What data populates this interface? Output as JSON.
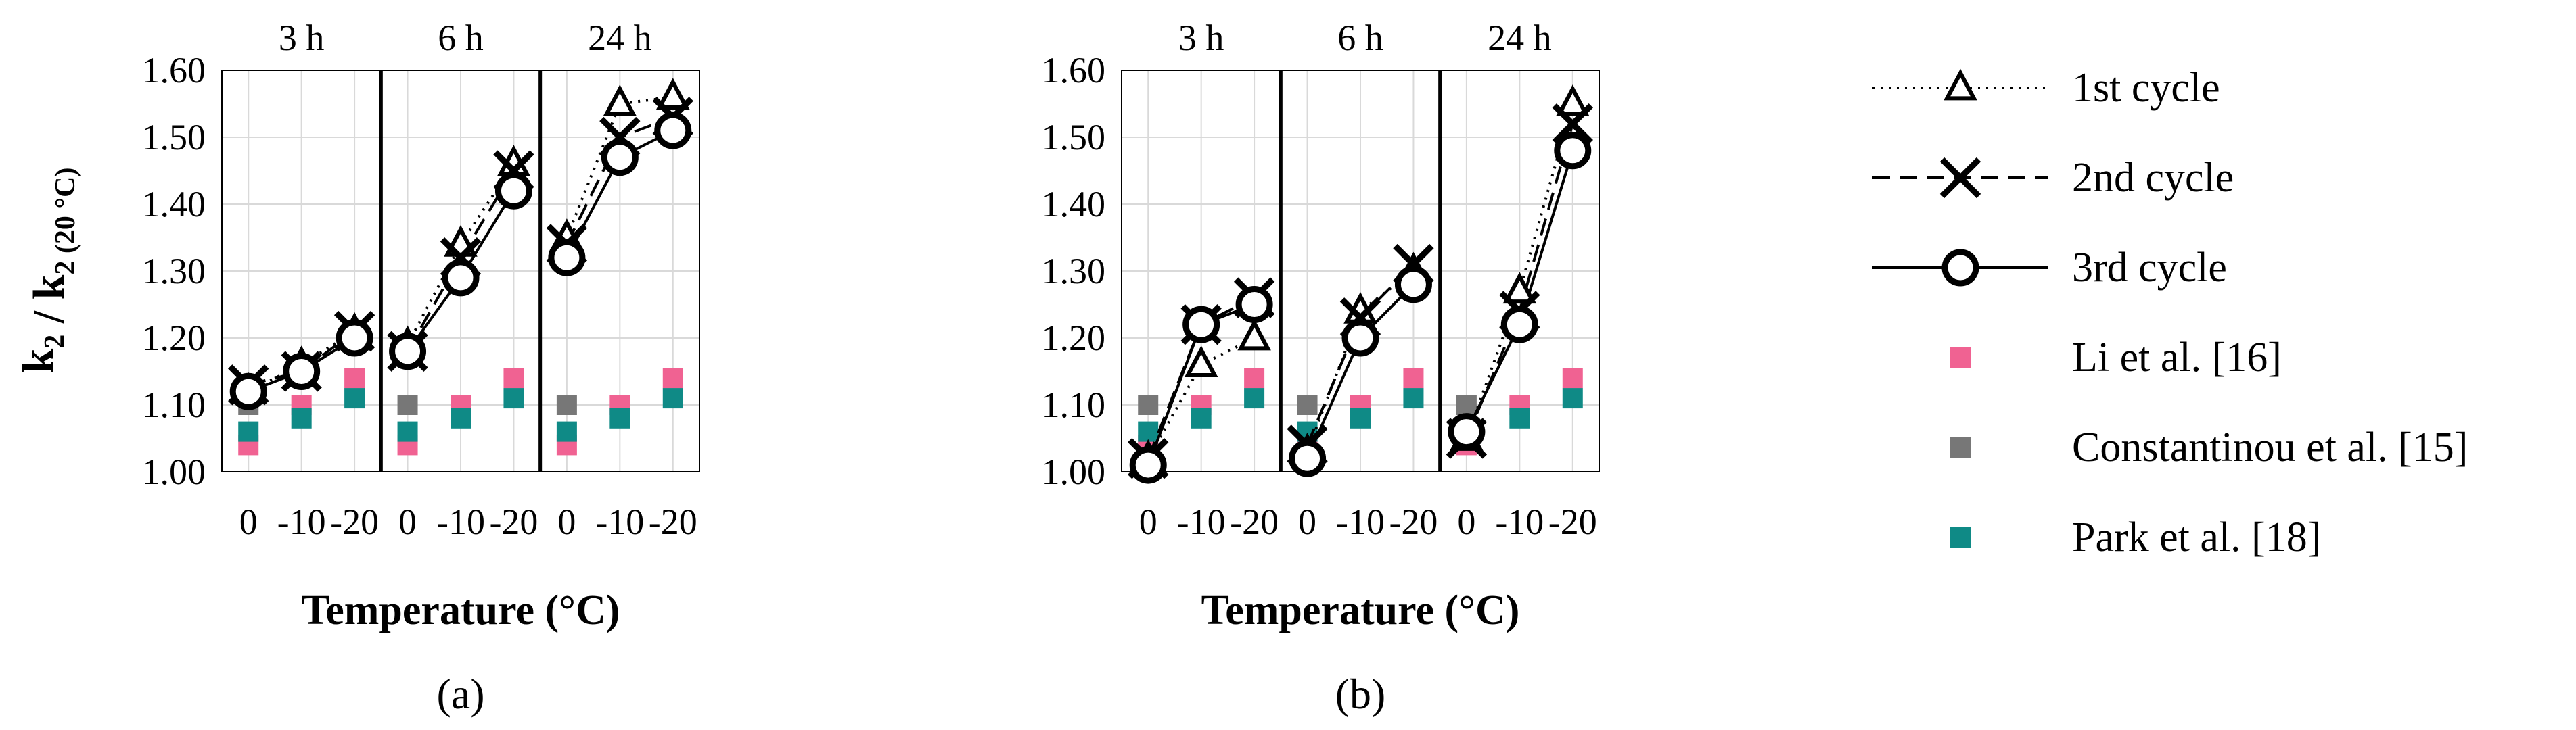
{
  "colors": {
    "li": "#F06292",
    "constantinou": "#777777",
    "park": "#0F8A86",
    "grid": "#d9d9d9",
    "series": "#000000"
  },
  "y_label": {
    "main": "k",
    "sub": "2",
    "sep": " / k",
    "sub2": "2 (20 °C)"
  },
  "chart_data": [
    {
      "type": "line",
      "panel_label": "(a)",
      "xlabel": "Temperature (°C)",
      "ylabel": "k2 / k2 (20 °C)",
      "ylim": [
        1.0,
        1.6
      ],
      "yticks": [
        "1.00",
        "1.10",
        "1.20",
        "1.30",
        "1.40",
        "1.50",
        "1.60"
      ],
      "groups": [
        "3 h",
        "6 h",
        "24 h"
      ],
      "categories": [
        "0",
        "-10",
        "-20"
      ],
      "series": [
        {
          "name": "1st cycle",
          "marker": "triangle",
          "dash": "dotted",
          "values": [
            [
              1.12,
              1.16,
              1.21
            ],
            [
              1.19,
              1.34,
              1.46
            ],
            [
              1.35,
              1.55,
              1.56
            ]
          ]
        },
        {
          "name": "2nd cycle",
          "marker": "x",
          "dash": "dashed",
          "values": [
            [
              1.13,
              1.15,
              1.21
            ],
            [
              1.18,
              1.32,
              1.45
            ],
            [
              1.34,
              1.5,
              1.53
            ]
          ]
        },
        {
          "name": "3rd cycle",
          "marker": "circle",
          "dash": "solid",
          "values": [
            [
              1.12,
              1.15,
              1.2
            ],
            [
              1.18,
              1.29,
              1.42
            ],
            [
              1.32,
              1.47,
              1.51
            ]
          ]
        }
      ],
      "references": [
        {
          "name": "Li et al. [16]",
          "color_key": "li",
          "values": [
            1.04,
            1.1,
            1.14
          ]
        },
        {
          "name": "Constantinou et al. [15]",
          "color_key": "constantinou",
          "values": [
            1.1,
            null,
            null
          ]
        },
        {
          "name": "Park et al. [18]",
          "color_key": "park",
          "values": [
            1.06,
            1.08,
            1.11
          ]
        }
      ]
    },
    {
      "type": "line",
      "panel_label": "(b)",
      "xlabel": "Temperature (°C)",
      "ylabel": "",
      "ylim": [
        1.0,
        1.6
      ],
      "yticks": [
        "1.00",
        "1.10",
        "1.20",
        "1.30",
        "1.40",
        "1.50",
        "1.60"
      ],
      "groups": [
        "3 h",
        "6 h",
        "24 h"
      ],
      "categories": [
        "0",
        "-10",
        "-20"
      ],
      "series": [
        {
          "name": "1st cycle",
          "marker": "triangle",
          "dash": "dotted",
          "values": [
            [
              1.02,
              1.16,
              1.2
            ],
            [
              1.03,
              1.24,
              1.3
            ],
            [
              1.05,
              1.27,
              1.55
            ]
          ]
        },
        {
          "name": "2nd cycle",
          "marker": "x",
          "dash": "dashed",
          "values": [
            [
              1.02,
              1.22,
              1.26
            ],
            [
              1.04,
              1.23,
              1.31
            ],
            [
              1.05,
              1.24,
              1.52
            ]
          ]
        },
        {
          "name": "3rd cycle",
          "marker": "circle",
          "dash": "solid",
          "values": [
            [
              1.01,
              1.22,
              1.25
            ],
            [
              1.02,
              1.2,
              1.28
            ],
            [
              1.06,
              1.22,
              1.48
            ]
          ]
        }
      ],
      "references": [
        {
          "name": "Li et al. [16]",
          "color_key": "li",
          "values": [
            1.04,
            1.1,
            1.14
          ]
        },
        {
          "name": "Constantinou et al. [15]",
          "color_key": "constantinou",
          "values": [
            1.1,
            null,
            null
          ]
        },
        {
          "name": "Park et al. [18]",
          "color_key": "park",
          "values": [
            1.06,
            1.08,
            1.11
          ]
        }
      ]
    }
  ],
  "legend": [
    {
      "label": "1st cycle",
      "marker": "triangle",
      "dash": "dotted"
    },
    {
      "label": "2nd cycle",
      "marker": "x",
      "dash": "dashed"
    },
    {
      "label": "3rd cycle",
      "marker": "circle",
      "dash": "solid"
    },
    {
      "label": "Li et al. [16]",
      "color_key": "li"
    },
    {
      "label": "Constantinou et al. [15]",
      "color_key": "constantinou"
    },
    {
      "label": "Park et al. [18]",
      "color_key": "park"
    }
  ]
}
